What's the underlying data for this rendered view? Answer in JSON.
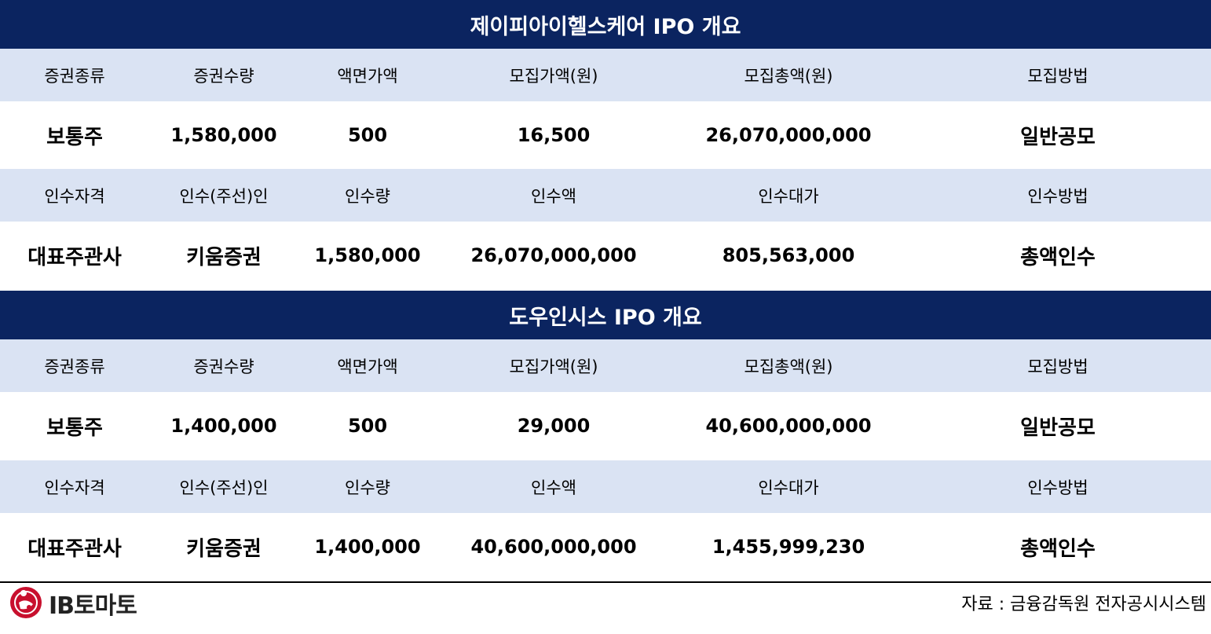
{
  "table1": {
    "title": "제이피아이헬스케어 IPO 개요",
    "header1": [
      "증권종류",
      "증권수량",
      "액면가액",
      "모집가액(원)",
      "모집총액(원)",
      "모집방법"
    ],
    "values1": [
      "보통주",
      "1,580,000",
      "500",
      "16,500",
      "26,070,000,000",
      "일반공모"
    ],
    "header2": [
      "인수자격",
      "인수(주선)인",
      "인수량",
      "인수액",
      "인수대가",
      "인수방법"
    ],
    "values2": [
      "대표주관사",
      "키움증권",
      "1,580,000",
      "26,070,000,000",
      "805,563,000",
      "총액인수"
    ]
  },
  "table2": {
    "title": "도우인시스 IPO 개요",
    "header1": [
      "증권종류",
      "증권수량",
      "액면가액",
      "모집가액(원)",
      "모집총액(원)",
      "모집방법"
    ],
    "values1": [
      "보통주",
      "1,400,000",
      "500",
      "29,000",
      "40,600,000,000",
      "일반공모"
    ],
    "header2": [
      "인수자격",
      "인수(주선)인",
      "인수량",
      "인수액",
      "인수대가",
      "인수방법"
    ],
    "values2": [
      "대표주관사",
      "키움증권",
      "1,400,000",
      "40,600,000,000",
      "1,455,999,230",
      "총액인수"
    ]
  },
  "footer": {
    "logo_text": "IB토마토",
    "source": "자료 :  금융감독원 전자공시시스템"
  },
  "colors": {
    "title_bg": "#0b2460",
    "header_bg": "#dae3f3",
    "logo_red": "#c8102e"
  }
}
